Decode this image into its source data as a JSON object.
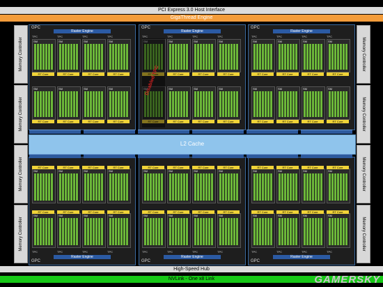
{
  "pci": "PCI Express 3.0 Host Interface",
  "giga": "GigaThread Engine",
  "memory_controller": "Memory Controller",
  "gpc": "GPC",
  "raster_engine": "Raster Engine",
  "tpc": "TPC",
  "sm": "SM",
  "rt_core": "RT Core",
  "l2": "L2 Cache",
  "hub": "High-Speed Hub",
  "nvlink": "NVLink - One x8 Link",
  "disabled_label": "Disabled TPC",
  "watermark": "GAMERSKY"
}
